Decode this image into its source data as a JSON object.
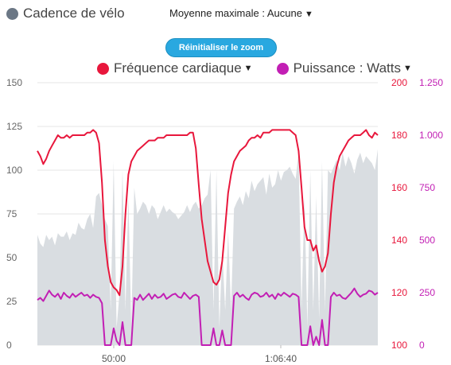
{
  "legend_top": {
    "label": "Cadence de vélo",
    "color": "#6b7785"
  },
  "average_dropdown": {
    "label": "Moyenne maximale : Aucune"
  },
  "reset_zoom": {
    "label": "Réinitialiser le zoom"
  },
  "legend_series": [
    {
      "label": "Fréquence cardiaque",
      "color": "#e8173c"
    },
    {
      "label": "Puissance : Watts",
      "color": "#c21fb4"
    }
  ],
  "chart_data": {
    "type": "area+line",
    "x_ticks": [
      "50:00",
      "1:06:40"
    ],
    "axes": {
      "left": {
        "ticks": [
          "0",
          "25",
          "50",
          "75",
          "100",
          "125",
          "150"
        ],
        "range": [
          0,
          150
        ]
      },
      "right_hr": {
        "ticks": [
          "100",
          "120",
          "140",
          "160",
          "180",
          "200"
        ],
        "range": [
          100,
          200
        ],
        "color": "#e8173c"
      },
      "right_power": {
        "ticks": [
          "0",
          "250",
          "500",
          "750",
          "1.000",
          "1.250"
        ],
        "range": [
          0,
          1250
        ],
        "color": "#c21fb4"
      }
    },
    "grid": true,
    "series": [
      {
        "name": "Cadence de vélo",
        "axis": "left",
        "color": "#d9dde1",
        "values": [
          63,
          58,
          56,
          63,
          60,
          62,
          57,
          64,
          62,
          62,
          65,
          60,
          64,
          63,
          70,
          67,
          66,
          72,
          75,
          67,
          85,
          87,
          80,
          72,
          68,
          20,
          105,
          10,
          30,
          100,
          20,
          85,
          10,
          90,
          75,
          78,
          82,
          80,
          75,
          80,
          78,
          72,
          76,
          80,
          76,
          78,
          76,
          75,
          72,
          74,
          76,
          80,
          76,
          80,
          82,
          78,
          80,
          84,
          86,
          100,
          20,
          100,
          10,
          55,
          20,
          65,
          20,
          78,
          82,
          85,
          80,
          88,
          84,
          94,
          88,
          92,
          94,
          96,
          86,
          98,
          90,
          92,
          100,
          94,
          99,
          100,
          102,
          98,
          95,
          110,
          20,
          85,
          10,
          100,
          20,
          85,
          15,
          105,
          20,
          100,
          98,
          102,
          106,
          100,
          110,
          102,
          108,
          104,
          98,
          106,
          110,
          104,
          108,
          106,
          104,
          100,
          112
        ]
      },
      {
        "name": "Fréquence cardiaque",
        "axis": "right_hr",
        "color": "#e8173c",
        "values": [
          174,
          172,
          169,
          171,
          174,
          176,
          178,
          180,
          179,
          179,
          180,
          179,
          180,
          180,
          180,
          180,
          180,
          181,
          181,
          182,
          181,
          177,
          162,
          140,
          130,
          124,
          122,
          121,
          119,
          130,
          150,
          165,
          170,
          172,
          174,
          175,
          176,
          177,
          178,
          178,
          178,
          179,
          179,
          179,
          180,
          180,
          180,
          180,
          180,
          180,
          180,
          180,
          181,
          181,
          175,
          161,
          148,
          140,
          132,
          128,
          124,
          123,
          125,
          132,
          145,
          158,
          165,
          170,
          172,
          174,
          175,
          176,
          178,
          179,
          179,
          180,
          179,
          181,
          181,
          181,
          182,
          182,
          182,
          182,
          182,
          182,
          182,
          181,
          180,
          174,
          160,
          145,
          140,
          140,
          136,
          138,
          132,
          128,
          130,
          135,
          150,
          162,
          168,
          172,
          174,
          176,
          178,
          179,
          180,
          180,
          180,
          181,
          182,
          180,
          179,
          181,
          180
        ]
      },
      {
        "name": "Puissance : Watts",
        "axis": "right_power",
        "color": "#c21fb4",
        "values": [
          215,
          225,
          210,
          235,
          260,
          240,
          230,
          245,
          220,
          250,
          235,
          225,
          245,
          230,
          240,
          250,
          235,
          240,
          225,
          240,
          230,
          225,
          200,
          0,
          0,
          0,
          80,
          20,
          0,
          110,
          0,
          0,
          0,
          225,
          215,
          240,
          215,
          230,
          245,
          220,
          240,
          225,
          230,
          245,
          220,
          230,
          240,
          245,
          230,
          225,
          250,
          235,
          220,
          235,
          240,
          230,
          0,
          0,
          0,
          0,
          80,
          0,
          0,
          70,
          0,
          0,
          0,
          235,
          250,
          230,
          240,
          225,
          215,
          240,
          250,
          245,
          230,
          235,
          250,
          230,
          240,
          220,
          245,
          235,
          250,
          240,
          230,
          245,
          240,
          230,
          0,
          0,
          0,
          90,
          0,
          40,
          0,
          120,
          0,
          0,
          230,
          250,
          235,
          240,
          225,
          220,
          235,
          250,
          270,
          245,
          230,
          240,
          245,
          260,
          255,
          240,
          250
        ]
      }
    ]
  }
}
